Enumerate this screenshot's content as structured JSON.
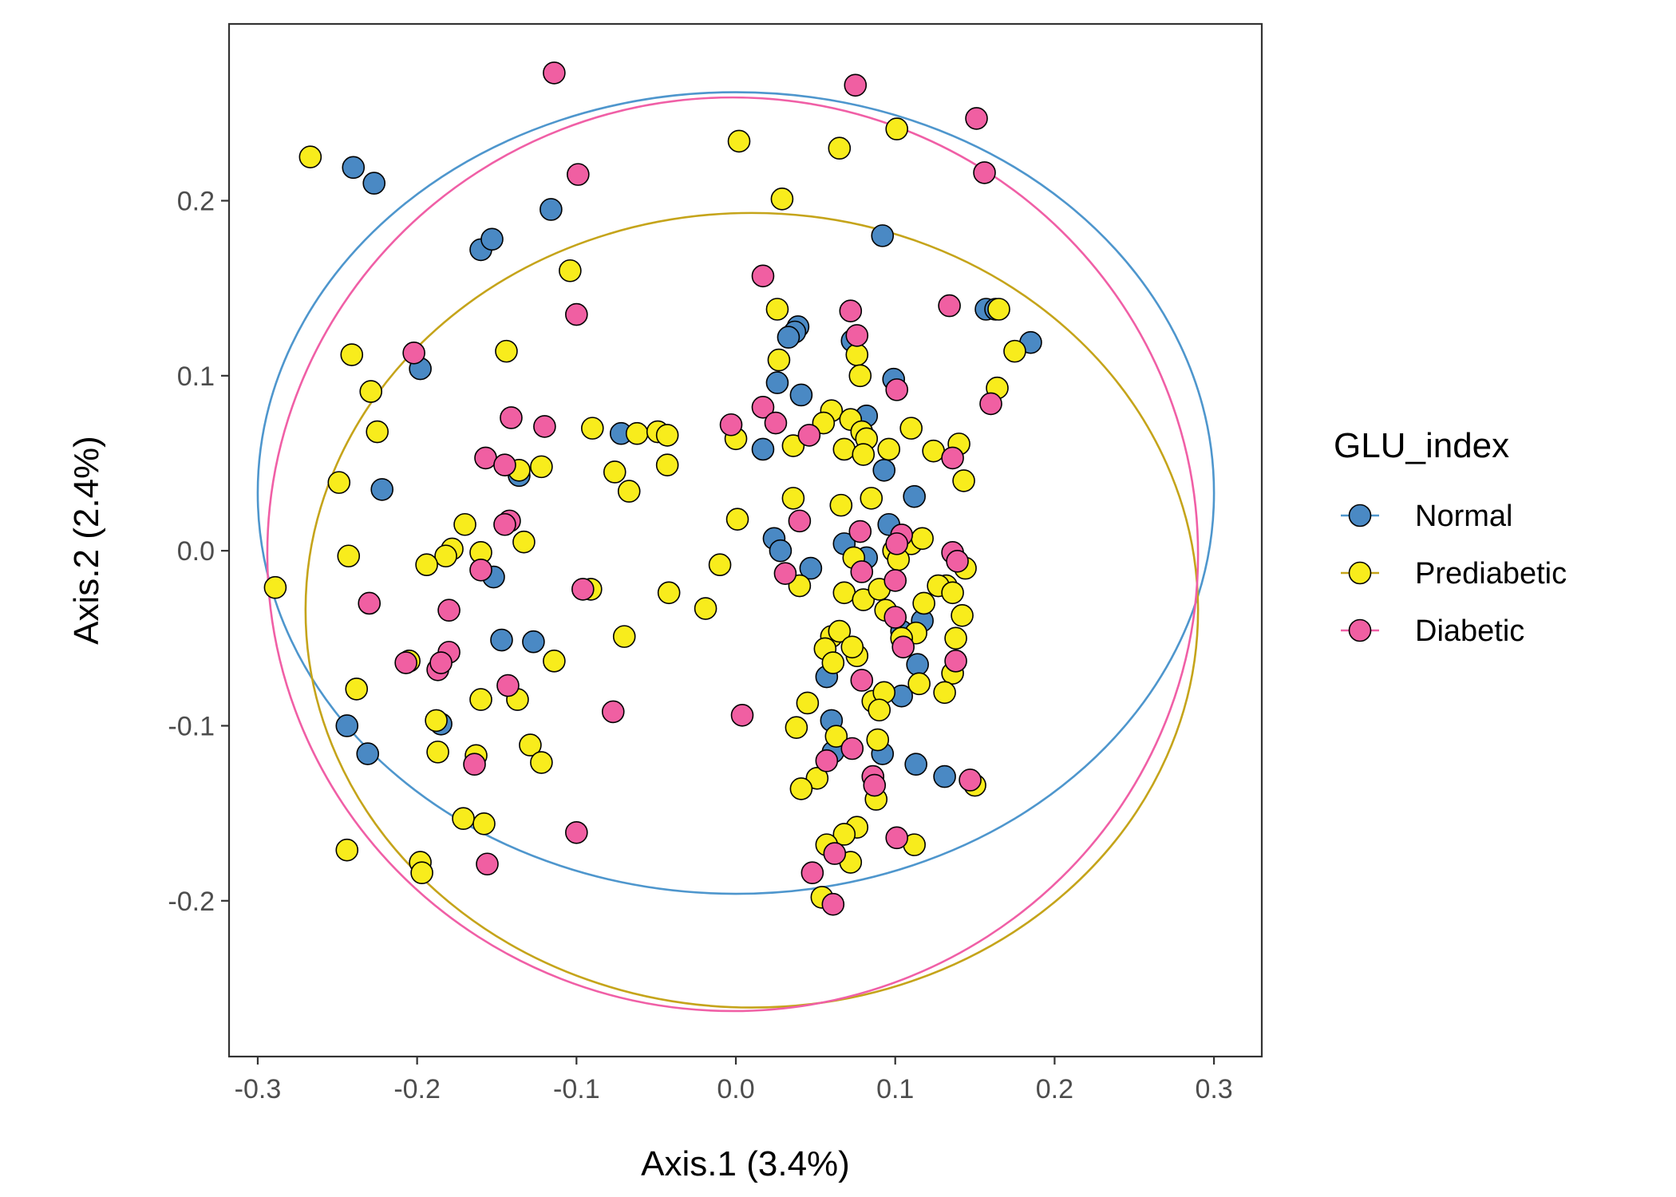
{
  "chart_data": {
    "type": "scatter",
    "title": "",
    "xlabel": "Axis.1 (3.4%)",
    "ylabel": "Axis.2 (2.4%)",
    "xlim": [
      -0.318,
      0.33
    ],
    "ylim": [
      -0.289,
      0.301
    ],
    "x_ticks": [
      -0.3,
      -0.2,
      -0.1,
      0.0,
      0.1,
      0.2,
      0.3
    ],
    "x_tick_labels": [
      "-0.3",
      "-0.2",
      "-0.1",
      "0.0",
      "0.1",
      "0.2",
      "0.3"
    ],
    "y_ticks": [
      -0.2,
      -0.1,
      0.0,
      0.1,
      0.2
    ],
    "y_tick_labels": [
      "-0.2",
      "-0.1",
      "0.0",
      "0.1",
      "0.2"
    ],
    "grid": false,
    "legend": {
      "title": "GLU_index",
      "placement": "right",
      "items": [
        "Normal",
        "Prediabetic",
        "Diabetic"
      ]
    },
    "series": [
      {
        "name": "Normal",
        "line_color": "#4e96cd",
        "fill_color": "#4a89c4",
        "ellipse": {
          "cx": 0.0,
          "cy": 0.033,
          "rx": 0.3,
          "ry": 0.229
        },
        "points": [
          [
            -0.24,
            0.219
          ],
          [
            -0.227,
            0.21
          ],
          [
            -0.116,
            0.195
          ],
          [
            -0.16,
            0.172
          ],
          [
            -0.153,
            0.178
          ],
          [
            0.092,
            0.18
          ],
          [
            -0.198,
            0.104
          ],
          [
            -0.222,
            0.035
          ],
          [
            -0.136,
            0.043
          ],
          [
            0.039,
            0.128
          ],
          [
            0.037,
            0.125
          ],
          [
            0.033,
            0.122
          ],
          [
            0.073,
            0.12
          ],
          [
            0.026,
            0.096
          ],
          [
            0.041,
            0.089
          ],
          [
            0.099,
            0.098
          ],
          [
            0.157,
            0.138
          ],
          [
            0.163,
            0.138
          ],
          [
            0.185,
            0.119
          ],
          [
            -0.072,
            0.067
          ],
          [
            0.017,
            0.058
          ],
          [
            0.082,
            0.077
          ],
          [
            0.093,
            0.046
          ],
          [
            0.112,
            0.031
          ],
          [
            0.024,
            0.007
          ],
          [
            0.028,
            0.0
          ],
          [
            0.096,
            0.015
          ],
          [
            0.068,
            0.004
          ],
          [
            -0.152,
            -0.015
          ],
          [
            0.047,
            -0.01
          ],
          [
            0.082,
            -0.004
          ],
          [
            -0.147,
            -0.051
          ],
          [
            -0.127,
            -0.052
          ],
          [
            0.104,
            -0.046
          ],
          [
            0.117,
            -0.04
          ],
          [
            0.114,
            -0.065
          ],
          [
            0.057,
            -0.072
          ],
          [
            0.104,
            -0.083
          ],
          [
            0.06,
            -0.097
          ],
          [
            0.061,
            -0.115
          ],
          [
            0.092,
            -0.116
          ],
          [
            0.113,
            -0.122
          ],
          [
            -0.185,
            -0.099
          ],
          [
            -0.244,
            -0.1
          ],
          [
            -0.231,
            -0.116
          ],
          [
            0.131,
            -0.129
          ]
        ]
      },
      {
        "name": "Prediabetic",
        "line_color": "#c5a41a",
        "fill_color": "#f8ec1c",
        "ellipse": {
          "cx": 0.01,
          "cy": -0.034,
          "rx": 0.28,
          "ry": 0.227
        },
        "points": [
          [
            -0.267,
            0.225
          ],
          [
            0.002,
            0.234
          ],
          [
            0.065,
            0.23
          ],
          [
            0.101,
            0.241
          ],
          [
            0.029,
            0.201
          ],
          [
            -0.104,
            0.16
          ],
          [
            0.026,
            0.138
          ],
          [
            0.165,
            0.138
          ],
          [
            -0.144,
            0.114
          ],
          [
            -0.241,
            0.112
          ],
          [
            0.175,
            0.114
          ],
          [
            0.027,
            0.109
          ],
          [
            0.076,
            0.112
          ],
          [
            0.078,
            0.1
          ],
          [
            -0.229,
            0.091
          ],
          [
            0.164,
            0.093
          ],
          [
            0.06,
            0.08
          ],
          [
            0.055,
            0.073
          ],
          [
            0.072,
            0.075
          ],
          [
            -0.09,
            0.07
          ],
          [
            -0.062,
            0.067
          ],
          [
            -0.049,
            0.068
          ],
          [
            -0.043,
            0.066
          ],
          [
            0.0,
            0.064
          ],
          [
            0.11,
            0.07
          ],
          [
            0.14,
            0.061
          ],
          [
            0.079,
            0.068
          ],
          [
            0.082,
            0.064
          ],
          [
            0.036,
            0.06
          ],
          [
            0.068,
            0.058
          ],
          [
            0.124,
            0.057
          ],
          [
            0.08,
            0.055
          ],
          [
            0.096,
            0.058
          ],
          [
            -0.225,
            0.068
          ],
          [
            -0.122,
            0.048
          ],
          [
            -0.136,
            0.046
          ],
          [
            -0.076,
            0.045
          ],
          [
            -0.043,
            0.049
          ],
          [
            -0.067,
            0.034
          ],
          [
            -0.249,
            0.039
          ],
          [
            0.143,
            0.04
          ],
          [
            0.085,
            0.03
          ],
          [
            0.036,
            0.03
          ],
          [
            0.066,
            0.026
          ],
          [
            0.001,
            0.018
          ],
          [
            -0.17,
            0.015
          ],
          [
            -0.133,
            0.005
          ],
          [
            0.11,
            0.004
          ],
          [
            0.099,
            0.0
          ],
          [
            0.117,
            0.007
          ],
          [
            0.074,
            -0.004
          ],
          [
            -0.178,
            0.001
          ],
          [
            -0.182,
            -0.003
          ],
          [
            -0.16,
            -0.001
          ],
          [
            -0.243,
            -0.003
          ],
          [
            -0.194,
            -0.008
          ],
          [
            -0.01,
            -0.008
          ],
          [
            0.144,
            -0.01
          ],
          [
            0.102,
            -0.005
          ],
          [
            0.132,
            -0.02
          ],
          [
            0.04,
            -0.02
          ],
          [
            -0.042,
            -0.024
          ],
          [
            -0.091,
            -0.022
          ],
          [
            -0.289,
            -0.021
          ],
          [
            0.068,
            -0.024
          ],
          [
            0.08,
            -0.028
          ],
          [
            0.09,
            -0.022
          ],
          [
            0.127,
            -0.02
          ],
          [
            0.136,
            -0.024
          ],
          [
            0.094,
            -0.034
          ],
          [
            0.118,
            -0.03
          ],
          [
            0.142,
            -0.037
          ],
          [
            -0.019,
            -0.033
          ],
          [
            -0.07,
            -0.049
          ],
          [
            0.06,
            -0.049
          ],
          [
            0.065,
            -0.046
          ],
          [
            0.113,
            -0.047
          ],
          [
            0.138,
            -0.05
          ],
          [
            0.056,
            -0.056
          ],
          [
            0.076,
            -0.06
          ],
          [
            0.104,
            -0.05
          ],
          [
            0.073,
            -0.055
          ],
          [
            0.061,
            -0.064
          ],
          [
            0.115,
            -0.076
          ],
          [
            0.136,
            -0.07
          ],
          [
            -0.114,
            -0.063
          ],
          [
            -0.205,
            -0.063
          ],
          [
            -0.238,
            -0.079
          ],
          [
            0.131,
            -0.081
          ],
          [
            0.086,
            -0.086
          ],
          [
            0.093,
            -0.081
          ],
          [
            0.045,
            -0.087
          ],
          [
            -0.16,
            -0.085
          ],
          [
            -0.137,
            -0.085
          ],
          [
            0.09,
            -0.091
          ],
          [
            0.038,
            -0.101
          ],
          [
            0.063,
            -0.106
          ],
          [
            -0.188,
            -0.097
          ],
          [
            -0.187,
            -0.115
          ],
          [
            -0.129,
            -0.111
          ],
          [
            -0.163,
            -0.117
          ],
          [
            -0.122,
            -0.121
          ],
          [
            0.089,
            -0.108
          ],
          [
            0.051,
            -0.13
          ],
          [
            0.041,
            -0.136
          ],
          [
            0.15,
            -0.134
          ],
          [
            0.088,
            -0.142
          ],
          [
            -0.171,
            -0.153
          ],
          [
            -0.158,
            -0.156
          ],
          [
            0.076,
            -0.158
          ],
          [
            0.068,
            -0.162
          ],
          [
            0.057,
            -0.168
          ],
          [
            0.112,
            -0.168
          ],
          [
            -0.244,
            -0.171
          ],
          [
            -0.198,
            -0.178
          ],
          [
            -0.197,
            -0.184
          ],
          [
            0.072,
            -0.178
          ],
          [
            0.054,
            -0.198
          ]
        ]
      },
      {
        "name": "Diabetic",
        "line_color": "#f05fa6",
        "fill_color": "#f05fa2",
        "ellipse": {
          "cx": -0.002,
          "cy": -0.002,
          "rx": 0.292,
          "ry": 0.261
        },
        "points": [
          [
            -0.114,
            0.273
          ],
          [
            0.075,
            0.266
          ],
          [
            0.151,
            0.247
          ],
          [
            0.156,
            0.216
          ],
          [
            -0.099,
            0.215
          ],
          [
            0.017,
            0.157
          ],
          [
            -0.1,
            0.135
          ],
          [
            0.134,
            0.14
          ],
          [
            0.072,
            0.137
          ],
          [
            0.076,
            0.123
          ],
          [
            -0.202,
            0.113
          ],
          [
            0.101,
            0.092
          ],
          [
            0.16,
            0.084
          ],
          [
            0.017,
            0.082
          ],
          [
            0.025,
            0.073
          ],
          [
            -0.003,
            0.072
          ],
          [
            -0.12,
            0.071
          ],
          [
            -0.141,
            0.076
          ],
          [
            0.046,
            0.066
          ],
          [
            0.136,
            0.053
          ],
          [
            -0.157,
            0.053
          ],
          [
            -0.145,
            0.049
          ],
          [
            0.04,
            0.017
          ],
          [
            -0.142,
            0.017
          ],
          [
            -0.145,
            0.015
          ],
          [
            0.078,
            0.011
          ],
          [
            0.104,
            0.009
          ],
          [
            0.136,
            -0.001
          ],
          [
            0.101,
            0.004
          ],
          [
            0.079,
            -0.012
          ],
          [
            -0.16,
            -0.011
          ],
          [
            0.031,
            -0.013
          ],
          [
            0.139,
            -0.006
          ],
          [
            0.1,
            -0.017
          ],
          [
            -0.096,
            -0.022
          ],
          [
            -0.23,
            -0.03
          ],
          [
            -0.18,
            -0.034
          ],
          [
            0.1,
            -0.038
          ],
          [
            0.105,
            -0.055
          ],
          [
            0.138,
            -0.063
          ],
          [
            -0.18,
            -0.058
          ],
          [
            -0.187,
            -0.068
          ],
          [
            -0.185,
            -0.064
          ],
          [
            -0.207,
            -0.064
          ],
          [
            0.079,
            -0.074
          ],
          [
            -0.143,
            -0.077
          ],
          [
            -0.077,
            -0.092
          ],
          [
            0.004,
            -0.094
          ],
          [
            0.073,
            -0.113
          ],
          [
            0.057,
            -0.12
          ],
          [
            0.086,
            -0.129
          ],
          [
            -0.164,
            -0.122
          ],
          [
            0.147,
            -0.131
          ],
          [
            0.087,
            -0.134
          ],
          [
            -0.1,
            -0.161
          ],
          [
            0.101,
            -0.164
          ],
          [
            0.062,
            -0.173
          ],
          [
            -0.156,
            -0.179
          ],
          [
            0.048,
            -0.184
          ],
          [
            0.061,
            -0.202
          ]
        ]
      }
    ]
  }
}
